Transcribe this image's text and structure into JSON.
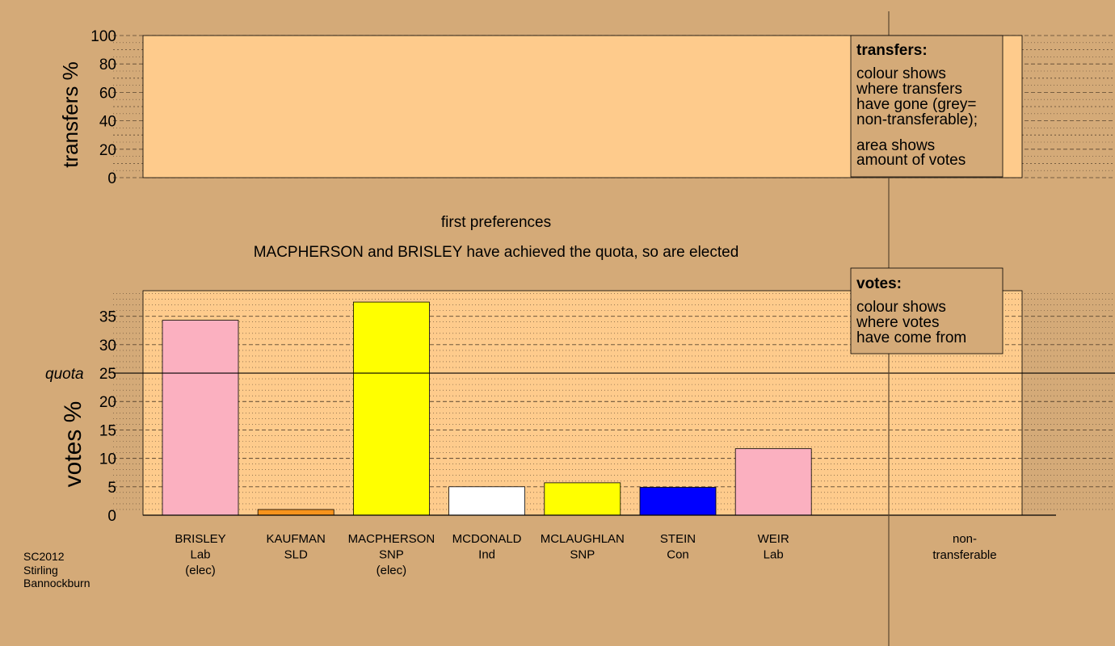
{
  "colors": {
    "background": "#d4aa78",
    "plot_fill": "#fecb8c",
    "Lab": "#fbb0c0",
    "SLD": "#f7941d",
    "SNP": "#ffff00",
    "Ind": "#ffffff",
    "Con": "#0000ff"
  },
  "caption": {
    "stage": "first preferences",
    "status": "MACPHERSON and BRISLEY have achieved the quota, so are elected"
  },
  "footer": {
    "line1": "SC2012",
    "line2": "Stirling",
    "line3": "Bannockburn"
  },
  "legend_transfers": {
    "title": "transfers:",
    "line1": "colour shows",
    "line2": "where transfers",
    "line3": "have gone (grey=",
    "line4": "non-transferable);",
    "line5": "area shows",
    "line6": "amount of votes"
  },
  "legend_votes": {
    "title": "votes:",
    "line1": "colour shows",
    "line2": "where votes",
    "line3": "have come from"
  },
  "chart_data": [
    {
      "type": "bar",
      "ylabel": "transfers %",
      "ylim": [
        0,
        100
      ],
      "yticks": [
        0,
        20,
        40,
        60,
        80,
        100
      ],
      "values": []
    },
    {
      "type": "bar",
      "ylabel": "votes %",
      "ylim": [
        0,
        39.5
      ],
      "yticks": [
        0,
        5,
        10,
        15,
        20,
        25,
        30,
        35
      ],
      "quota": 25,
      "quota_label": "quota",
      "categories": [
        {
          "name": "BRISLEY",
          "party": "Lab",
          "status": "(elec)",
          "value": 34.3
        },
        {
          "name": "KAUFMAN",
          "party": "SLD",
          "status": "",
          "value": 1.0
        },
        {
          "name": "MACPHERSON",
          "party": "SNP",
          "status": "(elec)",
          "value": 37.5
        },
        {
          "name": "MCDONALD",
          "party": "Ind",
          "status": "",
          "value": 5.0
        },
        {
          "name": "MCLAUGHLAN",
          "party": "SNP",
          "status": "",
          "value": 5.7
        },
        {
          "name": "STEIN",
          "party": "Con",
          "status": "",
          "value": 4.9
        },
        {
          "name": "WEIR",
          "party": "Lab",
          "status": "",
          "value": 11.7
        }
      ],
      "nontransferable_label_line1": "non-",
      "nontransferable_label_line2": "transferable"
    }
  ]
}
